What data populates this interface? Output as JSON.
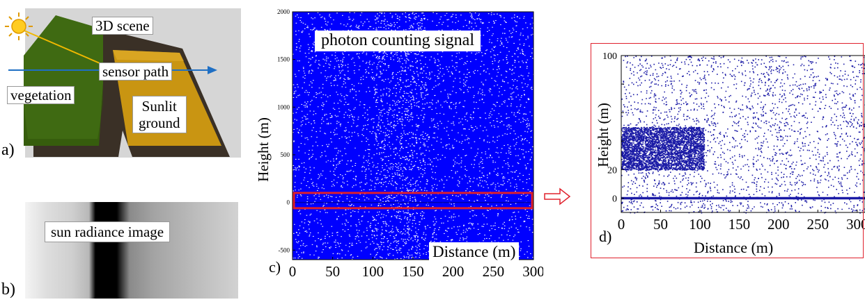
{
  "panel_a": {
    "letter": "a)",
    "labels": {
      "scene": "3D scene",
      "sensor_path": "sensor path",
      "vegetation": "vegetation",
      "sunlit_line1": "Sunlit",
      "sunlit_line2": "ground"
    },
    "colors": {
      "vegetation": "#3f6a12",
      "sunlit_ground": "#c99512",
      "dark_ground": "#3a3026",
      "background": "#d6d6d6",
      "sensor_path": "#1f6fc4",
      "sun_ray": "#f0b800",
      "sun": "#ffcc22"
    },
    "icon": "sun-icon"
  },
  "panel_b": {
    "letter": "b)",
    "label": "sun radiance image"
  },
  "chart_data": [
    {
      "panel": "c)",
      "type": "scatter",
      "title": "photon counting signal",
      "xlabel": "Distance (m)",
      "ylabel": "Height (m)",
      "xlim": [
        0,
        300
      ],
      "ylim": [
        -600,
        2000
      ],
      "xticks": [
        0,
        50,
        100,
        150,
        200,
        250,
        300
      ],
      "yticks": [
        -500,
        0,
        500,
        1000,
        1500,
        2000
      ],
      "grid": false,
      "point_color": "#0000ff",
      "series": [
        {
          "name": "",
          "x_range": [
            0,
            300
          ],
          "y_range": [
            -600,
            2000
          ],
          "description_density": "dense"
        }
      ],
      "ground_level": 0,
      "zoom_region": {
        "x": [
          0,
          300
        ],
        "y": [
          -60,
          100
        ],
        "color": "#e0202c"
      }
    },
    {
      "panel": "d)",
      "type": "scatter",
      "xlabel": "Distance (m)",
      "ylabel": "Height (m)",
      "xlim": [
        0,
        310
      ],
      "ylim": [
        -10,
        100
      ],
      "xticks": [
        0,
        50,
        100,
        150,
        200,
        250,
        300
      ],
      "xtick_labels": [
        "0",
        "50",
        "100",
        "150",
        "200",
        "250",
        "300"
      ],
      "yticks": [
        0,
        20,
        40,
        60,
        80,
        100
      ],
      "ytick_labels": [
        "0",
        "20",
        "",
        "",
        "",
        "100"
      ],
      "grid": false,
      "point_color": "#1a1aa6",
      "canopy": {
        "x": [
          0,
          105
        ],
        "y": [
          20,
          50
        ]
      },
      "ground_level": 0,
      "frame_color": "#e0202c"
    }
  ]
}
